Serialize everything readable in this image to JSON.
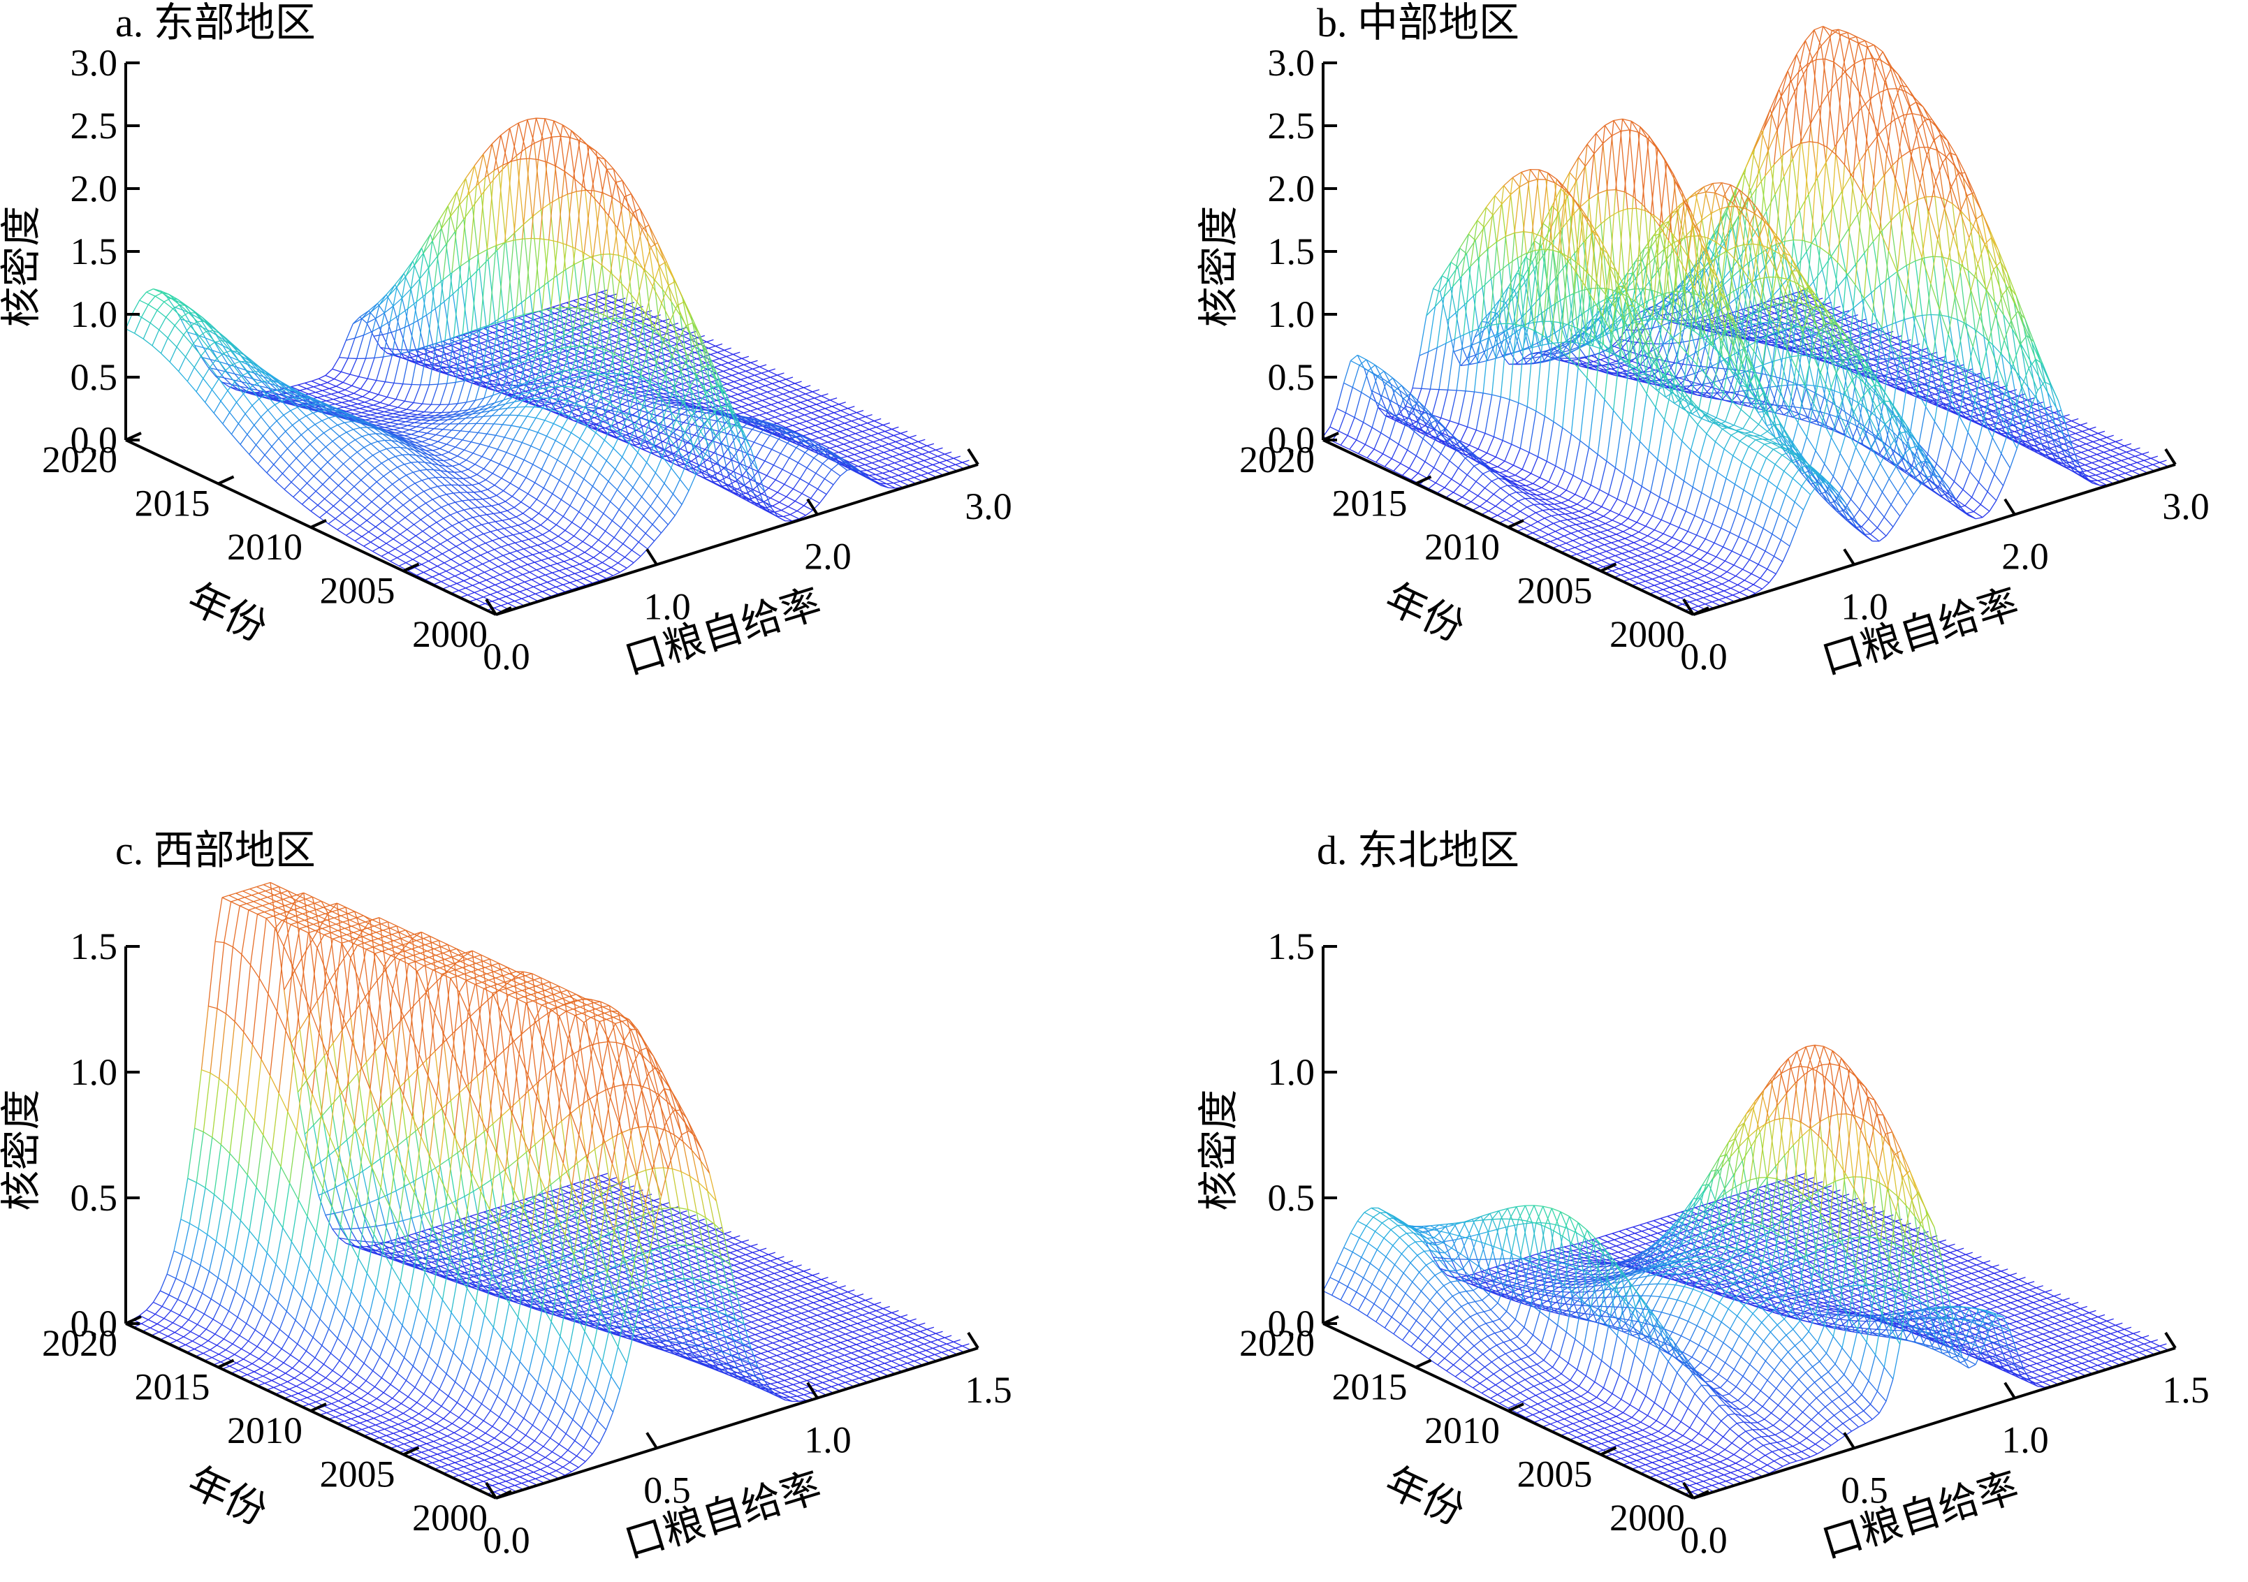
{
  "chart_data": [
    {
      "type": "surface",
      "title": "a. 东部地区",
      "xlabel": "口粮自给率",
      "ylabel": "年份",
      "zlabel": "核密度",
      "xlim": [
        0,
        3
      ],
      "ylim": [
        2000,
        2020
      ],
      "zlim": [
        0,
        3
      ],
      "x_ticks": [
        "0.0",
        "1.0",
        "2.0",
        "3.0"
      ],
      "y_ticks": [
        "2000",
        "2005",
        "2010",
        "2015",
        "2020"
      ],
      "z_ticks": [
        "0.0",
        "0.5",
        "1.0",
        "1.5",
        "2.0",
        "2.5",
        "3.0"
      ],
      "peaks": [
        {
          "x": 0.15,
          "year": 2020,
          "height": 1.1,
          "width": 0.22
        },
        {
          "x": 0.5,
          "year": 2012,
          "height": 0.45,
          "width": 0.25
        },
        {
          "x": 1.1,
          "year": 2006,
          "height": 0.6,
          "width": 0.15
        },
        {
          "x": 1.35,
          "year": 2004,
          "height": 1.0,
          "width": 0.12
        },
        {
          "x": 1.45,
          "year": 2012,
          "height": 1.9,
          "width": 0.08
        },
        {
          "x": 1.55,
          "year": 2006,
          "height": 1.5,
          "width": 0.1
        },
        {
          "x": 2.2,
          "year": 2003,
          "height": 0.35,
          "width": 0.12
        }
      ]
    },
    {
      "type": "surface",
      "title": "b. 中部地区",
      "xlabel": "口粮自给率",
      "ylabel": "年份",
      "zlabel": "核密度",
      "xlim": [
        0,
        3
      ],
      "ylim": [
        2000,
        2020
      ],
      "zlim": [
        0,
        3
      ],
      "x_ticks": [
        "0.0",
        "1.0",
        "2.0",
        "3.0"
      ],
      "y_ticks": [
        "2000",
        "2005",
        "2010",
        "2015",
        "2020"
      ],
      "z_ticks": [
        "0.0",
        "0.5",
        "1.0",
        "1.5",
        "2.0",
        "2.5",
        "3.0"
      ],
      "peaks": [
        {
          "x": 0.2,
          "year": 2020,
          "height": 0.6,
          "width": 0.08
        },
        {
          "x": 0.7,
          "year": 2014,
          "height": 2.3,
          "width": 0.08
        },
        {
          "x": 1.0,
          "year": 2012,
          "height": 2.7,
          "width": 0.08
        },
        {
          "x": 1.3,
          "year": 2010,
          "height": 2.0,
          "width": 0.1
        },
        {
          "x": 1.5,
          "year": 2006,
          "height": 1.2,
          "width": 0.12
        },
        {
          "x": 2.0,
          "year": 2010,
          "height": 2.8,
          "width": 0.1
        },
        {
          "x": 2.2,
          "year": 2006,
          "height": 2.3,
          "width": 0.12
        },
        {
          "x": 0.8,
          "year": 2002,
          "height": 0.8,
          "width": 0.15
        }
      ]
    },
    {
      "type": "surface",
      "title": "c. 西部地区",
      "xlabel": "口粮自给率",
      "ylabel": "年份",
      "zlabel": "核密度",
      "xlim": [
        0,
        1.5
      ],
      "ylim": [
        2000,
        2020
      ],
      "zlim": [
        0,
        1.5
      ],
      "x_ticks": [
        "0.0",
        "0.5",
        "1.0",
        "1.5"
      ],
      "y_ticks": [
        "2000",
        "2005",
        "2010",
        "2015",
        "2020"
      ],
      "z_ticks": [
        "0.0",
        "0.5",
        "1.0",
        "1.5"
      ],
      "peaks": [
        {
          "x": 0.35,
          "year": 2020,
          "height": 1.65,
          "width": 0.1
        },
        {
          "x": 0.45,
          "year": 2014,
          "height": 1.35,
          "width": 0.1
        },
        {
          "x": 0.5,
          "year": 2008,
          "height": 1.0,
          "width": 0.1
        },
        {
          "x": 0.55,
          "year": 2004,
          "height": 0.8,
          "width": 0.1
        },
        {
          "x": 0.65,
          "year": 2000,
          "height": 0.7,
          "width": 0.1
        }
      ]
    },
    {
      "type": "surface",
      "title": "d. 东北地区",
      "xlabel": "口粮自给率",
      "ylabel": "年份",
      "zlabel": "核密度",
      "xlim": [
        0,
        1.5
      ],
      "ylim": [
        2000,
        2020
      ],
      "zlim": [
        0,
        1.5
      ],
      "x_ticks": [
        "0.0",
        "0.5",
        "1.0",
        "1.5"
      ],
      "y_ticks": [
        "2000",
        "2005",
        "2010",
        "2015",
        "2020"
      ],
      "z_ticks": [
        "0.0",
        "0.5",
        "1.0",
        "1.5"
      ],
      "peaks": [
        {
          "x": 0.15,
          "year": 2020,
          "height": 0.4,
          "width": 0.1
        },
        {
          "x": 0.3,
          "year": 2012,
          "height": 0.55,
          "width": 0.04
        },
        {
          "x": 0.55,
          "year": 2008,
          "height": 0.4,
          "width": 0.1
        },
        {
          "x": 0.7,
          "year": 2006,
          "height": 0.9,
          "width": 0.05
        },
        {
          "x": 0.75,
          "year": 2002,
          "height": 0.6,
          "width": 0.06
        },
        {
          "x": 0.95,
          "year": 2000,
          "height": 0.35,
          "width": 0.05
        }
      ]
    }
  ]
}
